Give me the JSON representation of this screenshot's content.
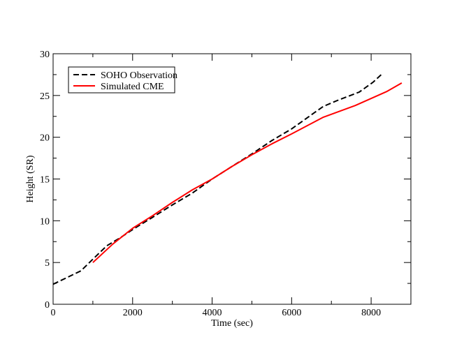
{
  "chart_data": {
    "type": "line",
    "title": "",
    "xlabel": "Time (sec)",
    "ylabel": "Height (SR)",
    "xlim": [
      0,
      9000
    ],
    "ylim": [
      0,
      30
    ],
    "grid": false,
    "legend_position": "top-left",
    "x_ticks": [
      {
        "value": 0,
        "label": "0"
      },
      {
        "value": 2000,
        "label": "2000"
      },
      {
        "value": 4000,
        "label": "4000"
      },
      {
        "value": 6000,
        "label": "6000"
      },
      {
        "value": 8000,
        "label": "8000"
      }
    ],
    "y_ticks": [
      {
        "value": 0,
        "label": "0"
      },
      {
        "value": 5,
        "label": "5"
      },
      {
        "value": 10,
        "label": "10"
      },
      {
        "value": 15,
        "label": "15"
      },
      {
        "value": 20,
        "label": "20"
      },
      {
        "value": 25,
        "label": "25"
      },
      {
        "value": 30,
        "label": "30"
      }
    ],
    "series": [
      {
        "name": "SOHO Observation",
        "color": "#000000",
        "line_style": "dashed",
        "x": [
          0,
          700,
          1000,
          1350,
          1700,
          2050,
          2500,
          3000,
          3500,
          4000,
          4500,
          5000,
          5500,
          6000,
          6500,
          6800,
          7200,
          7700,
          8050,
          8300
        ],
        "y": [
          2.4,
          4.0,
          5.4,
          7.0,
          8.0,
          9.1,
          10.4,
          11.9,
          13.3,
          15.0,
          16.5,
          18.0,
          19.6,
          21.0,
          22.7,
          23.7,
          24.5,
          25.4,
          26.6,
          27.7
        ]
      },
      {
        "name": "Simulated CME",
        "color": "#ff0000",
        "line_style": "solid",
        "x": [
          1000,
          1500,
          2000,
          2500,
          3000,
          3500,
          4000,
          4500,
          5000,
          5500,
          6000,
          6800,
          7600,
          8400,
          8770
        ],
        "y": [
          5.0,
          7.2,
          9.1,
          10.6,
          12.2,
          13.7,
          15.0,
          16.5,
          17.9,
          19.2,
          20.4,
          22.4,
          23.8,
          25.5,
          26.5
        ]
      }
    ]
  }
}
